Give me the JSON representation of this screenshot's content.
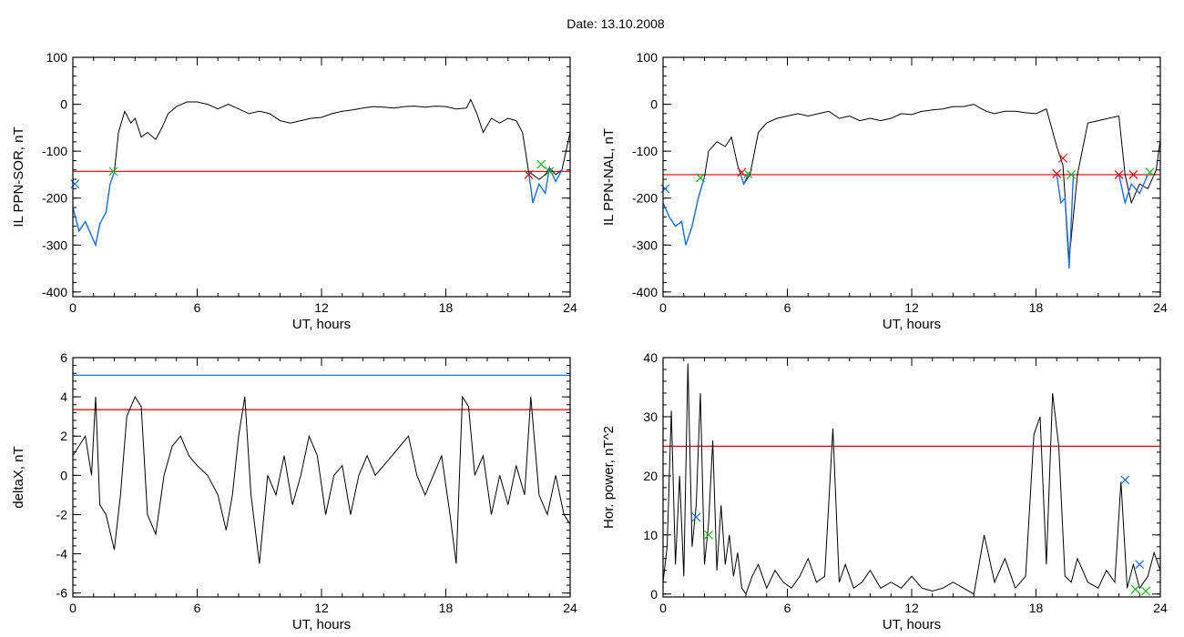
{
  "figure": {
    "title": "Date:  13.10.2008"
  },
  "colors": {
    "signal": "#000000",
    "threshold_red": "#e00000",
    "threshold_blue": "#1f6fd0",
    "event_blue": "#1f6fd0",
    "marker_green": "#22aa22",
    "marker_red": "#cc1111"
  },
  "chart_data": [
    {
      "type": "line",
      "title": "",
      "xlabel": "UT, hours",
      "ylabel": "IL PPN-SOR, nT",
      "xlim": [
        0,
        24
      ],
      "ylim": [
        -410,
        100
      ],
      "xticks": [
        0,
        6,
        12,
        18,
        24
      ],
      "yticks": [
        100,
        0,
        -100,
        -200,
        -300,
        -400
      ],
      "series": [
        {
          "color": "#000000",
          "x": [
            0,
            0.3,
            0.6,
            0.9,
            1.1,
            1.3,
            1.6,
            1.8,
            2.0,
            2.2,
            2.5,
            2.8,
            3.0,
            3.3,
            3.6,
            4.0,
            4.3,
            4.6,
            5.0,
            5.5,
            6.0,
            6.5,
            7.0,
            7.5,
            8.0,
            8.5,
            9.0,
            9.5,
            10.0,
            10.5,
            11.0,
            11.5,
            12.0,
            12.5,
            13.0,
            13.5,
            14.0,
            14.5,
            15.0,
            15.5,
            16.0,
            16.5,
            17.0,
            17.5,
            18.0,
            18.5,
            19.0,
            19.2,
            19.5,
            19.8,
            20.2,
            20.6,
            21.0,
            21.4,
            21.7,
            22.0,
            22.2,
            22.5,
            22.8,
            23.0,
            23.3,
            23.6,
            23.8,
            24.0
          ],
          "y": [
            -220,
            -270,
            -250,
            -280,
            -300,
            -255,
            -230,
            -170,
            -145,
            -60,
            -15,
            -40,
            -30,
            -70,
            -60,
            -75,
            -50,
            -20,
            -5,
            5,
            5,
            0,
            -10,
            0,
            -10,
            -20,
            -15,
            -20,
            -35,
            -40,
            -35,
            -30,
            -28,
            -20,
            -15,
            -12,
            -8,
            -5,
            -6,
            -8,
            -5,
            -4,
            -6,
            -4,
            -5,
            -10,
            -8,
            10,
            -20,
            -60,
            -30,
            -40,
            -30,
            -35,
            -60,
            -145,
            -150,
            -160,
            -150,
            -135,
            -150,
            -140,
            -100,
            -60
          ]
        },
        {
          "color": "#1f6fd0",
          "x": [
            0,
            0.3,
            0.6,
            0.9,
            1.1,
            1.3,
            1.6,
            1.8,
            2.0
          ],
          "y": [
            -220,
            -270,
            -250,
            -280,
            -300,
            -255,
            -230,
            -170,
            -145
          ]
        },
        {
          "color": "#1f6fd0",
          "x": [
            22.0,
            22.2,
            22.5,
            22.8,
            23.0,
            23.3,
            23.6
          ],
          "y": [
            -145,
            -210,
            -170,
            -190,
            -135,
            -165,
            -140
          ]
        }
      ],
      "hlines": [
        {
          "y": -143,
          "color": "#e00000"
        }
      ],
      "markers": [
        {
          "x": 0.1,
          "y": -170,
          "color": "#1f6fd0"
        },
        {
          "x": 1.95,
          "y": -143,
          "color": "#22aa22"
        },
        {
          "x": 22.0,
          "y": -150,
          "color": "#cc1111"
        },
        {
          "x": 22.6,
          "y": -128,
          "color": "#22aa22"
        },
        {
          "x": 23.0,
          "y": -143,
          "color": "#22aa22"
        }
      ]
    },
    {
      "type": "line",
      "title": "",
      "xlabel": "UT, hours",
      "ylabel": "IL PPN-NAL, nT",
      "xlim": [
        0,
        24
      ],
      "ylim": [
        -410,
        100
      ],
      "xticks": [
        0,
        6,
        12,
        18,
        24
      ],
      "yticks": [
        100,
        0,
        -100,
        -200,
        -300,
        -400
      ],
      "series": [
        {
          "color": "#000000",
          "x": [
            0,
            0.3,
            0.6,
            0.9,
            1.1,
            1.4,
            1.7,
            2.0,
            2.2,
            2.6,
            3.0,
            3.3,
            3.6,
            3.9,
            4.2,
            4.6,
            5.0,
            5.5,
            6.0,
            6.5,
            7.0,
            7.5,
            8.0,
            8.5,
            9.0,
            9.5,
            10.0,
            10.5,
            11.0,
            11.5,
            12.0,
            12.5,
            13.0,
            13.5,
            14.0,
            14.5,
            15.0,
            15.3,
            15.6,
            16.0,
            16.5,
            17.0,
            17.5,
            18.0,
            18.5,
            19.0,
            19.3,
            19.6,
            20.0,
            20.5,
            21.0,
            21.5,
            22.0,
            22.3,
            22.6,
            23.0,
            23.4,
            23.8,
            24.0
          ],
          "y": [
            -210,
            -240,
            -260,
            -250,
            -300,
            -260,
            -200,
            -155,
            -100,
            -80,
            -90,
            -70,
            -130,
            -170,
            -150,
            -60,
            -40,
            -30,
            -25,
            -20,
            -25,
            -20,
            -15,
            -30,
            -25,
            -35,
            -30,
            -35,
            -30,
            -20,
            -22,
            -15,
            -12,
            -10,
            -5,
            -5,
            0,
            -8,
            -15,
            -20,
            -15,
            -15,
            -18,
            -20,
            -10,
            -90,
            -130,
            -330,
            -150,
            -40,
            -35,
            -30,
            -25,
            -150,
            -210,
            -170,
            -180,
            -140,
            -75
          ]
        },
        {
          "color": "#1f6fd0",
          "x": [
            0,
            0.3,
            0.6,
            0.9,
            1.1,
            1.4,
            1.7,
            2.0
          ],
          "y": [
            -210,
            -240,
            -260,
            -250,
            -300,
            -260,
            -200,
            -155
          ]
        },
        {
          "color": "#1f6fd0",
          "x": [
            3.7,
            3.9,
            4.1
          ],
          "y": [
            -145,
            -170,
            -150
          ]
        },
        {
          "color": "#1f6fd0",
          "x": [
            19.0,
            19.2,
            19.4,
            19.6,
            19.8
          ],
          "y": [
            -150,
            -210,
            -200,
            -350,
            -150
          ]
        },
        {
          "color": "#1f6fd0",
          "x": [
            22.0,
            22.3,
            22.6,
            23.0,
            23.4
          ],
          "y": [
            -150,
            -210,
            -170,
            -190,
            -150
          ]
        }
      ],
      "hlines": [
        {
          "y": -150,
          "color": "#e00000"
        }
      ],
      "markers": [
        {
          "x": 0.1,
          "y": -180,
          "color": "#1f6fd0"
        },
        {
          "x": 1.8,
          "y": -157,
          "color": "#22aa22"
        },
        {
          "x": 3.8,
          "y": -145,
          "color": "#cc1111"
        },
        {
          "x": 4.1,
          "y": -148,
          "color": "#22aa22"
        },
        {
          "x": 19.0,
          "y": -148,
          "color": "#cc1111"
        },
        {
          "x": 19.3,
          "y": -115,
          "color": "#cc1111"
        },
        {
          "x": 19.7,
          "y": -150,
          "color": "#22aa22"
        },
        {
          "x": 22.0,
          "y": -150,
          "color": "#cc1111"
        },
        {
          "x": 22.7,
          "y": -150,
          "color": "#cc1111"
        },
        {
          "x": 23.5,
          "y": -145,
          "color": "#22aa22"
        }
      ]
    },
    {
      "type": "line",
      "title": "",
      "xlabel": "UT, hours",
      "ylabel": "deltaX, nT",
      "xlim": [
        0,
        24
      ],
      "ylim": [
        -6.2,
        6
      ],
      "xticks": [
        0,
        6,
        12,
        18,
        24
      ],
      "yticks": [
        6,
        4,
        2,
        0,
        -2,
        -4,
        -6
      ],
      "series": [
        {
          "color": "#000000",
          "x": [
            0,
            0.3,
            0.6,
            0.9,
            1.1,
            1.3,
            1.6,
            2.0,
            2.3,
            2.6,
            3.0,
            3.3,
            3.6,
            4.0,
            4.4,
            4.8,
            5.2,
            5.6,
            6.0,
            6.5,
            7.0,
            7.4,
            7.7,
            8.0,
            8.3,
            8.6,
            9.0,
            9.4,
            9.8,
            10.2,
            10.6,
            11.0,
            11.4,
            11.8,
            12.2,
            12.6,
            13.0,
            13.4,
            13.8,
            14.2,
            14.6,
            15.0,
            15.4,
            15.8,
            16.2,
            16.6,
            17.0,
            17.4,
            17.8,
            18.2,
            18.5,
            18.8,
            19.1,
            19.4,
            19.8,
            20.2,
            20.6,
            21.0,
            21.4,
            21.8,
            22.1,
            22.5,
            22.9,
            23.3,
            23.7,
            24.0
          ],
          "y": [
            1,
            1.5,
            2,
            0,
            4,
            -1.5,
            -2,
            -3.8,
            -1,
            3,
            4,
            3.5,
            -2,
            -3,
            0,
            1.5,
            2,
            1,
            0.5,
            0,
            -1,
            -2.8,
            -1,
            2,
            4,
            -1,
            -4.5,
            0,
            -1,
            1,
            -1.5,
            0,
            2,
            1,
            -2,
            0,
            0.5,
            -2,
            0,
            1,
            0,
            0.5,
            1,
            1.5,
            2,
            0,
            -1,
            0,
            1,
            -2,
            -4.5,
            4,
            3.5,
            0,
            1,
            -2,
            0,
            -1.5,
            0.5,
            -1,
            4,
            -1,
            -2,
            0,
            -2,
            -2.5
          ]
        }
      ],
      "hlines": [
        {
          "y": 5.1,
          "color": "#1f6fd0"
        },
        {
          "y": 3.35,
          "color": "#e00000"
        }
      ],
      "markers": []
    },
    {
      "type": "line",
      "title": "",
      "xlabel": "UT, hours",
      "ylabel": "Hor. power, nT^2",
      "xlim": [
        0,
        24
      ],
      "ylim": [
        -0.5,
        40
      ],
      "xticks": [
        0,
        6,
        12,
        18,
        24
      ],
      "yticks": [
        40,
        30,
        20,
        10,
        0
      ],
      "series": [
        {
          "color": "#000000",
          "x": [
            0,
            0.2,
            0.4,
            0.6,
            0.8,
            1.0,
            1.2,
            1.4,
            1.6,
            1.8,
            2.0,
            2.2,
            2.4,
            2.6,
            2.8,
            3.0,
            3.2,
            3.4,
            3.6,
            3.8,
            4.0,
            4.3,
            4.6,
            5.0,
            5.4,
            5.8,
            6.2,
            6.6,
            7.0,
            7.4,
            7.8,
            8.2,
            8.5,
            8.8,
            9.2,
            9.6,
            10.0,
            10.5,
            11.0,
            11.5,
            12.0,
            12.5,
            13.0,
            13.5,
            14.0,
            14.5,
            15.0,
            15.5,
            16.0,
            16.5,
            17.0,
            17.5,
            17.9,
            18.2,
            18.5,
            18.8,
            19.1,
            19.4,
            19.7,
            20.0,
            20.5,
            21.0,
            21.4,
            21.8,
            22.1,
            22.4,
            22.7,
            23.0,
            23.4,
            23.7,
            24.0
          ],
          "y": [
            2,
            8,
            31,
            5,
            20,
            3,
            39,
            8,
            15,
            34,
            5,
            12,
            26,
            4,
            15,
            5,
            10,
            3,
            7,
            1,
            0,
            3,
            5,
            1,
            4,
            2,
            1,
            3,
            6,
            2,
            3,
            28,
            2,
            5,
            1,
            2,
            4,
            1,
            2,
            1,
            3,
            1,
            0.5,
            1,
            2,
            1,
            0,
            10,
            2,
            6,
            1,
            3,
            27,
            30,
            5,
            34,
            25,
            3,
            2,
            6,
            2,
            1,
            4,
            2,
            19,
            1,
            5,
            1,
            3,
            7,
            4
          ]
        }
      ],
      "hlines": [
        {
          "y": 25,
          "color": "#e00000"
        }
      ],
      "markers": [
        {
          "x": 1.6,
          "y": 13,
          "color": "#1f6fd0"
        },
        {
          "x": 2.2,
          "y": 10,
          "color": "#22aa22"
        },
        {
          "x": 22.3,
          "y": 19.3,
          "color": "#1f6fd0"
        },
        {
          "x": 22.8,
          "y": 0.8,
          "color": "#22aa22"
        },
        {
          "x": 23.0,
          "y": 5,
          "color": "#1f6fd0"
        },
        {
          "x": 23.3,
          "y": 0.5,
          "color": "#22aa22"
        }
      ]
    }
  ]
}
